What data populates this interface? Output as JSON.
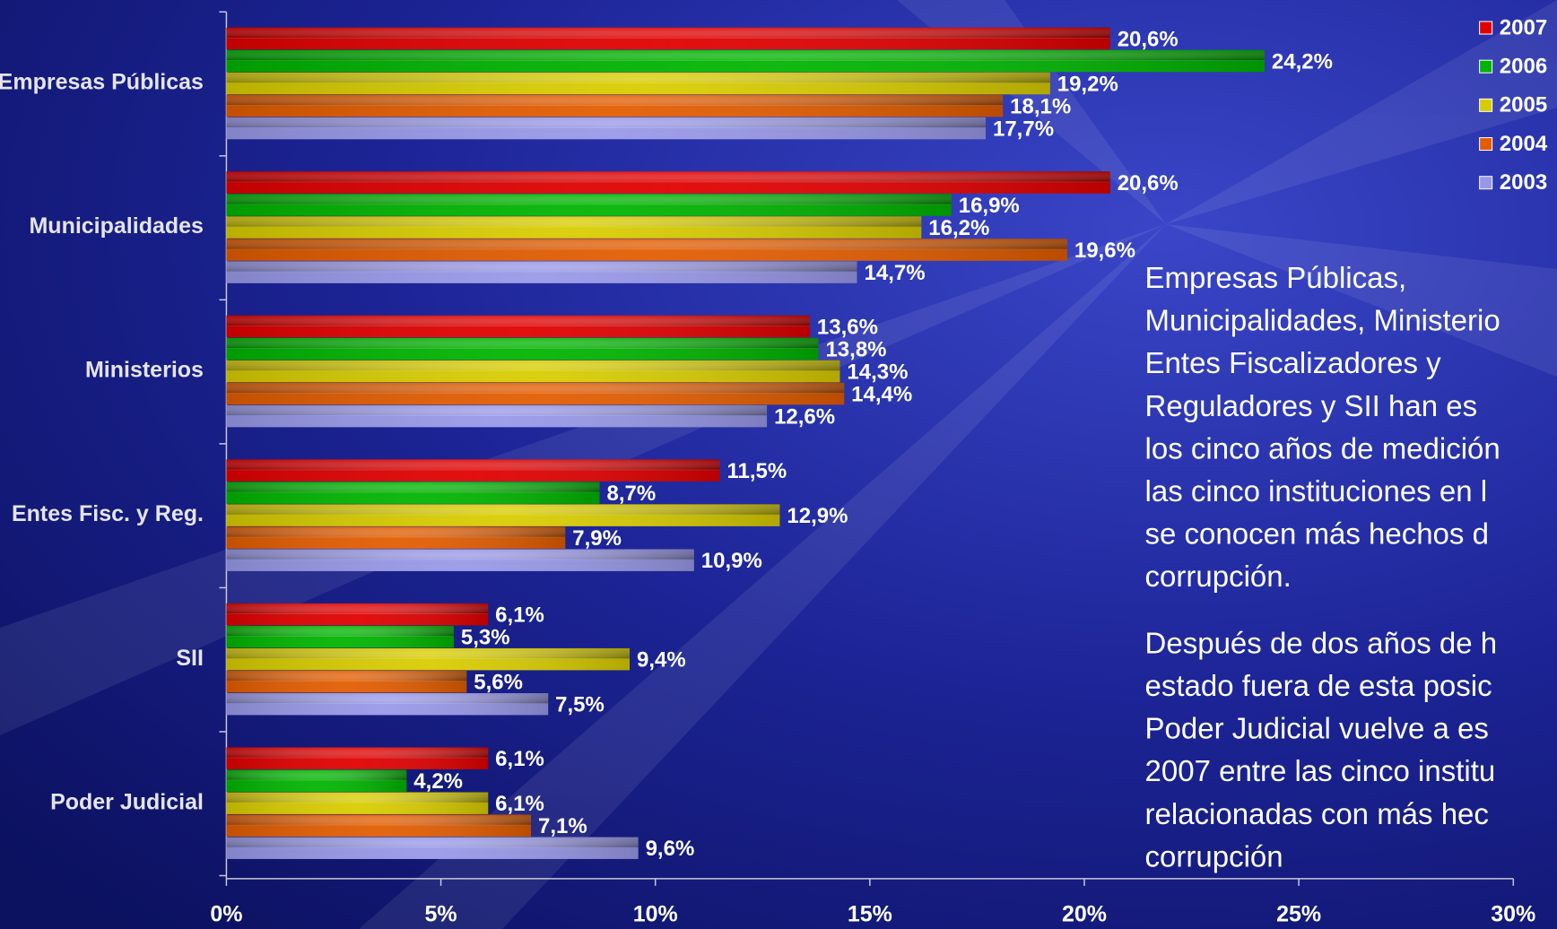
{
  "chart_data": {
    "type": "hbar",
    "categories": [
      "Empresas Públicas",
      "Municipalidades",
      "Ministerios",
      "Entes Fisc. y Reg.",
      "SII",
      "Poder Judicial"
    ],
    "series": [
      {
        "name": "2007",
        "color": "#e00000",
        "values": [
          20.6,
          20.6,
          13.6,
          11.5,
          6.1,
          6.1
        ],
        "value_labels": [
          "20,6%",
          "20,6%",
          "13,6%",
          "11,5%",
          "6,1%",
          "6,1%"
        ]
      },
      {
        "name": "2006",
        "color": "#00b400",
        "values": [
          24.2,
          16.9,
          13.8,
          8.7,
          5.3,
          4.2
        ],
        "value_labels": [
          "24,2%",
          "16,9%",
          "13,8%",
          "8,7%",
          "5,3%",
          "4,2%"
        ]
      },
      {
        "name": "2005",
        "color": "#d8cc00",
        "values": [
          19.2,
          16.2,
          14.3,
          12.9,
          9.4,
          6.1
        ],
        "value_labels": [
          "19,2%",
          "16,2%",
          "14,3%",
          "12,9%",
          "9,4%",
          "6,1%"
        ]
      },
      {
        "name": "2004",
        "color": "#e25c00",
        "values": [
          18.1,
          19.6,
          14.4,
          7.9,
          5.6,
          7.1
        ],
        "value_labels": [
          "18,1%",
          "19,6%",
          "14,4%",
          "7,9%",
          "5,6%",
          "7,1%"
        ]
      },
      {
        "name": "2003",
        "color": "#9898e8",
        "values": [
          17.7,
          14.7,
          12.6,
          10.9,
          7.5,
          9.6
        ],
        "value_labels": [
          "17,7%",
          "14,7%",
          "12,6%",
          "10,9%",
          "7,5%",
          "9,6%"
        ]
      }
    ],
    "xlim": [
      0,
      30
    ],
    "xticks": [
      {
        "value": 0,
        "label": "0%"
      },
      {
        "value": 5,
        "label": "5%"
      },
      {
        "value": 10,
        "label": "10%"
      },
      {
        "value": 15,
        "label": "15%"
      },
      {
        "value": 20,
        "label": "20%"
      },
      {
        "value": 25,
        "label": "25%"
      },
      {
        "value": 30,
        "label": "30%"
      }
    ],
    "legend": "top-right",
    "annotations": [
      [
        "Empresas Públicas,",
        "Municipalidades, Ministerio",
        "Entes Fiscalizadores y",
        "Reguladores y SII  han es",
        "los cinco años de medición",
        "las cinco instituciones en l",
        "se conocen más hechos d",
        "corrupción."
      ],
      [
        "Después de dos años de h",
        "estado fuera de esta posic",
        "Poder Judicial vuelve a es",
        "2007 entre las cinco institu",
        "relacionadas con más hec",
        "corrupción"
      ]
    ]
  }
}
